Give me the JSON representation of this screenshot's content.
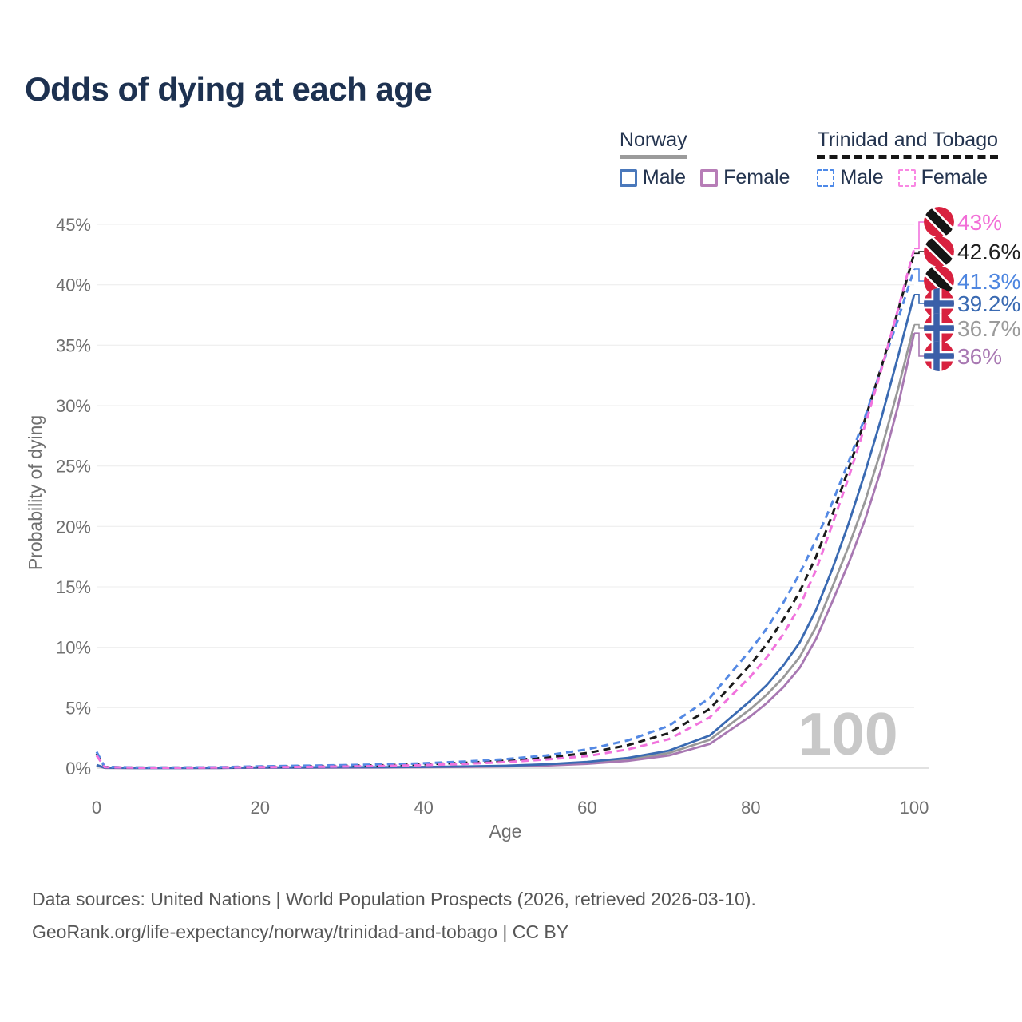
{
  "title": "Odds of dying at each age",
  "legend": {
    "groups": [
      {
        "name": "Norway",
        "line_style": "solid",
        "underline_color": "#9b9b9b",
        "items": [
          {
            "label": "Male",
            "color": "#4a78bb",
            "dashed": false
          },
          {
            "label": "Female",
            "color": "#b77db7",
            "dashed": false
          }
        ]
      },
      {
        "name": "Trinidad and Tobago",
        "line_style": "dashed",
        "underline_color": "#161616",
        "items": [
          {
            "label": "Male",
            "color": "#4d89e8",
            "dashed": true
          },
          {
            "label": "Female",
            "color": "#f988e3",
            "dashed": true
          }
        ]
      }
    ]
  },
  "chart_data": {
    "type": "line",
    "title": "Odds of dying at each age",
    "xlabel": "Age",
    "ylabel": "Probability of dying",
    "xlim": [
      0,
      100
    ],
    "ylim": [
      0,
      45
    ],
    "xticks": [
      0,
      20,
      40,
      60,
      80,
      100
    ],
    "yticks": [
      0,
      5,
      10,
      15,
      20,
      25,
      30,
      35,
      40,
      45
    ],
    "ytick_suffix": "%",
    "grid": "horizontal",
    "legend_position": "top-right",
    "watermark": "100",
    "x": [
      0,
      1,
      5,
      10,
      15,
      20,
      25,
      30,
      35,
      40,
      45,
      50,
      55,
      60,
      65,
      70,
      75,
      80,
      82,
      84,
      86,
      88,
      90,
      92,
      94,
      96,
      98,
      100
    ],
    "series": [
      {
        "name": "Norway — Total",
        "country": "Norway",
        "sex": "Total",
        "color": "#999999",
        "dashed": false,
        "flag": "norway",
        "end_label": "36.7%",
        "end_label_color": "#9b9b9b",
        "values": [
          0.24,
          0.02,
          0.01,
          0.01,
          0.02,
          0.04,
          0.05,
          0.06,
          0.07,
          0.09,
          0.12,
          0.17,
          0.27,
          0.44,
          0.72,
          1.25,
          2.35,
          4.9,
          6.1,
          7.5,
          9.2,
          11.7,
          15.0,
          18.4,
          22.1,
          26.4,
          31.3,
          36.7
        ]
      },
      {
        "name": "Norway — Female",
        "country": "Norway",
        "sex": "Female",
        "color": "#a878b2",
        "dashed": false,
        "flag": "norway",
        "end_label": "36%",
        "end_label_color": "#a878b2",
        "values": [
          0.21,
          0.02,
          0.01,
          0.01,
          0.01,
          0.03,
          0.03,
          0.04,
          0.05,
          0.07,
          0.1,
          0.14,
          0.22,
          0.36,
          0.6,
          1.05,
          2.0,
          4.3,
          5.4,
          6.7,
          8.3,
          10.7,
          13.8,
          17.0,
          20.6,
          24.8,
          29.9,
          36.0
        ]
      },
      {
        "name": "Norway — Male",
        "country": "Norway",
        "sex": "Male",
        "color": "#3a6ab2",
        "dashed": false,
        "flag": "norway",
        "end_label": "39.2%",
        "end_label_color": "#3a6ab2",
        "values": [
          0.27,
          0.03,
          0.01,
          0.01,
          0.02,
          0.05,
          0.06,
          0.07,
          0.08,
          0.1,
          0.14,
          0.2,
          0.32,
          0.52,
          0.85,
          1.45,
          2.7,
          5.6,
          6.9,
          8.5,
          10.4,
          13.1,
          16.5,
          20.3,
          24.5,
          29.0,
          34.0,
          39.2
        ]
      },
      {
        "name": "Trinidad and Tobago — Total",
        "country": "Trinidad and Tobago",
        "sex": "Total",
        "color": "#1a1a1a",
        "dashed": true,
        "flag": "trinidad-and-tobago",
        "end_label": "42.6%",
        "end_label_color": "#1f1f1f",
        "values": [
          1.2,
          0.09,
          0.04,
          0.04,
          0.06,
          0.11,
          0.15,
          0.19,
          0.24,
          0.32,
          0.44,
          0.62,
          0.88,
          1.25,
          1.9,
          2.9,
          4.9,
          8.6,
          10.3,
          12.3,
          14.6,
          17.5,
          21.0,
          24.8,
          28.9,
          33.2,
          37.8,
          42.6
        ]
      },
      {
        "name": "Trinidad and Tobago — Male",
        "country": "Trinidad and Tobago",
        "sex": "Male",
        "color": "#5489e4",
        "dashed": true,
        "flag": "trinidad-and-tobago",
        "end_label": "41.3%",
        "end_label_color": "#4e86e0",
        "values": [
          1.35,
          0.1,
          0.05,
          0.05,
          0.08,
          0.15,
          0.2,
          0.25,
          0.31,
          0.4,
          0.55,
          0.75,
          1.05,
          1.55,
          2.3,
          3.5,
          5.8,
          9.8,
          11.6,
          13.7,
          16.1,
          18.9,
          22.0,
          25.4,
          29.1,
          33.1,
          37.1,
          41.3
        ]
      },
      {
        "name": "Trinidad and Tobago — Female",
        "country": "Trinidad and Tobago",
        "sex": "Female",
        "color": "#f173dd",
        "dashed": true,
        "flag": "trinidad-and-tobago",
        "end_label": "43%",
        "end_label_color": "#f26ed7",
        "values": [
          1.05,
          0.08,
          0.03,
          0.03,
          0.05,
          0.08,
          0.1,
          0.13,
          0.18,
          0.25,
          0.35,
          0.5,
          0.72,
          1.0,
          1.55,
          2.4,
          4.2,
          7.6,
          9.2,
          11.1,
          13.4,
          16.4,
          20.2,
          24.1,
          28.4,
          33.0,
          37.9,
          43.0
        ]
      }
    ]
  },
  "footer": {
    "line1": "Data sources: United Nations | World Population Prospects (2026, retrieved 2026-03-10).",
    "line2": "GeoRank.org/life-expectancy/norway/trinidad-and-tobago | CC BY"
  }
}
